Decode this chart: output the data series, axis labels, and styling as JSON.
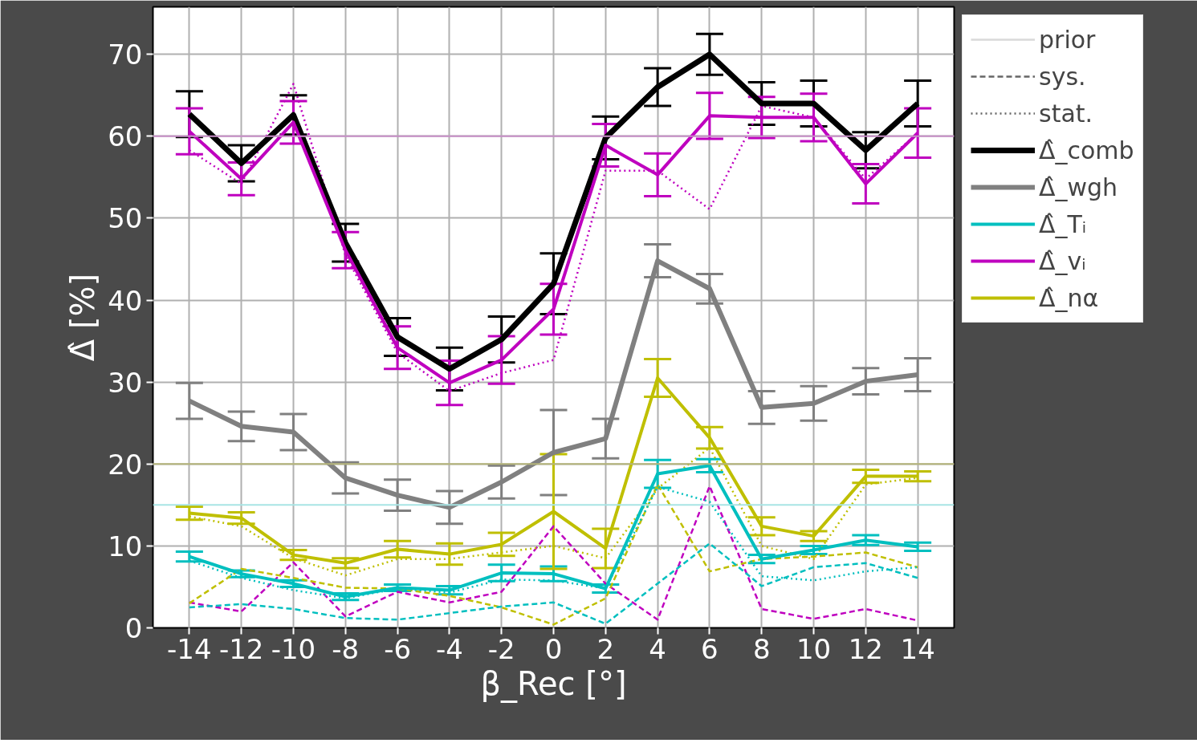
{
  "chart_data": {
    "type": "line",
    "xlabel": "β_Rec [°]",
    "ylabel": "Δ̂ [%]",
    "x": [
      -14,
      -12,
      -10,
      -8,
      -6,
      -4,
      -2,
      0,
      2,
      4,
      6,
      8,
      10,
      12,
      14
    ],
    "xlim": [
      -15.4,
      15.4
    ],
    "xticks": [
      -14,
      -12,
      -10,
      -8,
      -6,
      -4,
      -2,
      0,
      2,
      4,
      6,
      8,
      10,
      12,
      14
    ],
    "ylim": [
      0,
      75.8
    ],
    "yticks": [
      0,
      10,
      20,
      30,
      40,
      50,
      60,
      70
    ],
    "grid": true,
    "legend": "right",
    "ref_lines": [
      {
        "axis": "y",
        "value": 60,
        "color": "#c78fc7"
      },
      {
        "axis": "y",
        "value": 20,
        "color": "#b5b57a"
      },
      {
        "axis": "y",
        "value": 15,
        "color": "#a8e4e4"
      }
    ],
    "series": [
      {
        "name": "prior",
        "color": "#d9d9d9",
        "line_style": "solid",
        "values": [
          null,
          null,
          null,
          null,
          null,
          null,
          null,
          null,
          null,
          null,
          null,
          null,
          null,
          null,
          null
        ]
      },
      {
        "name": "sys.",
        "color": "#666666",
        "line_style": "dashed",
        "values": [
          null,
          null,
          null,
          null,
          null,
          null,
          null,
          null,
          null,
          null,
          null,
          null,
          null,
          null,
          null
        ]
      },
      {
        "name": "stat.",
        "color": "#666666",
        "line_style": "dotted",
        "values": [
          null,
          null,
          null,
          null,
          null,
          null,
          null,
          null,
          null,
          null,
          null,
          null,
          null,
          null,
          null
        ]
      },
      {
        "color": "#bf00bf",
        "line_style": "dashed",
        "values": [
          3.1,
          2.0,
          8.0,
          1.4,
          4.4,
          3.1,
          4.4,
          12.4,
          5.4,
          1.0,
          17.3,
          2.3,
          1.1,
          2.3,
          0.9
        ]
      },
      {
        "color": "#bf00bf",
        "line_style": "dotted",
        "values": [
          58.3,
          54.2,
          66.4,
          45.5,
          33.6,
          28.9,
          31.1,
          32.7,
          55.8,
          55.8,
          51.1,
          63.7,
          62.3,
          54.8,
          60.4
        ]
      },
      {
        "color": "#bfbf00",
        "line_style": "dashed",
        "values": [
          3.0,
          7.2,
          6.1,
          4.9,
          4.8,
          3.9,
          2.5,
          0.4,
          3.6,
          17.5,
          6.9,
          8.4,
          8.7,
          9.2,
          7.4
        ]
      },
      {
        "color": "#bfbf00",
        "line_style": "dotted",
        "values": [
          13.6,
          12.4,
          8.5,
          6.4,
          8.4,
          8.4,
          9.2,
          10.0,
          8.5,
          17.0,
          22.0,
          10.0,
          8.4,
          17.5,
          18.3
        ]
      },
      {
        "color": "#00bfbf",
        "line_style": "dashed",
        "values": [
          2.5,
          2.9,
          2.3,
          1.2,
          1.0,
          1.8,
          2.6,
          3.1,
          0.5,
          5.4,
          10.3,
          5.1,
          7.4,
          7.9,
          6.1
        ]
      },
      {
        "color": "#00bfbf",
        "line_style": "dotted",
        "values": [
          8.2,
          6.1,
          4.6,
          3.6,
          4.8,
          4.3,
          5.9,
          5.8,
          4.8,
          17.2,
          15.4,
          6.3,
          5.8,
          6.9,
          7.4
        ]
      },
      {
        "name": "Δ̂_comb",
        "color": "#000000",
        "line_style": "solid",
        "values": [
          62.7,
          56.7,
          62.6,
          47.0,
          35.5,
          31.6,
          35.2,
          42.0,
          59.8,
          66.0,
          70.0,
          64.0,
          64.0,
          58.3,
          64.0
        ],
        "errors": [
          2.8,
          2.2,
          2.4,
          2.3,
          2.3,
          2.6,
          2.8,
          3.7,
          2.6,
          2.3,
          2.5,
          2.6,
          2.8,
          2.2,
          2.8
        ]
      },
      {
        "name": "Δ̂_wgh",
        "color": "#808080",
        "line_style": "solid",
        "values": [
          27.7,
          24.6,
          23.9,
          18.3,
          16.2,
          14.7,
          17.8,
          21.4,
          23.1,
          44.8,
          41.4,
          26.9,
          27.4,
          30.1,
          30.9
        ],
        "errors": [
          2.2,
          1.8,
          2.2,
          1.9,
          1.9,
          2.0,
          2.0,
          5.2,
          2.4,
          2.0,
          1.8,
          2.0,
          2.1,
          1.6,
          2.0
        ]
      },
      {
        "name": "Δ̂_Tᵢ",
        "color": "#00bfbf",
        "line_style": "solid",
        "values": [
          8.7,
          6.6,
          5.4,
          3.8,
          4.9,
          4.6,
          6.7,
          6.6,
          4.8,
          18.8,
          19.8,
          8.4,
          9.5,
          10.7,
          9.9
        ],
        "errors": [
          0.6,
          0.4,
          0.4,
          0.4,
          0.4,
          0.5,
          1.0,
          0.9,
          0.5,
          1.7,
          0.8,
          0.5,
          0.5,
          0.6,
          0.5
        ]
      },
      {
        "name": "Δ̂_vᵢ",
        "color": "#bf00bf",
        "line_style": "solid",
        "values": [
          60.6,
          54.8,
          61.7,
          46.1,
          34.2,
          29.9,
          32.7,
          38.9,
          58.9,
          55.3,
          62.5,
          62.3,
          62.3,
          54.2,
          60.4
        ],
        "errors": [
          2.8,
          2.0,
          2.6,
          2.2,
          2.6,
          2.7,
          2.9,
          3.1,
          2.6,
          2.6,
          2.8,
          2.5,
          2.9,
          2.4,
          3.0
        ]
      },
      {
        "name": "Δ̂_nα",
        "color": "#bfbf00",
        "line_style": "solid",
        "values": [
          14.0,
          13.4,
          8.9,
          7.9,
          9.6,
          9.0,
          10.2,
          14.2,
          9.7,
          30.5,
          23.2,
          12.4,
          11.2,
          18.5,
          18.5
        ],
        "errors": [
          0.8,
          0.7,
          0.6,
          0.6,
          1.0,
          1.3,
          1.4,
          7.0,
          2.4,
          2.3,
          1.3,
          1.1,
          0.6,
          0.8,
          0.6
        ]
      }
    ]
  }
}
